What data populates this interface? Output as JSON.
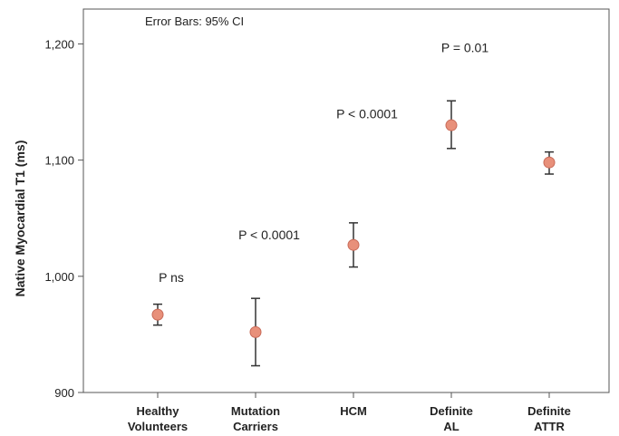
{
  "chart_data": {
    "type": "scatter",
    "note": "Error Bars: 95% CI",
    "ylabel": "Native Myocardial T1 (ms)",
    "xlabel": "",
    "ylim": [
      900,
      1230
    ],
    "yticks": [
      900,
      1000,
      1100,
      1200
    ],
    "ytick_labels": [
      "900",
      "1,000",
      "1,100",
      "1,200"
    ],
    "categories": [
      [
        "Healthy",
        "Volunteers"
      ],
      [
        "Mutation",
        "Carriers"
      ],
      [
        "HCM"
      ],
      [
        "Definite",
        "AL"
      ],
      [
        "Definite",
        "ATTR"
      ]
    ],
    "values": [
      967,
      952,
      1027,
      1130,
      1098
    ],
    "ci_lower": [
      958,
      923,
      1008,
      1110,
      1088
    ],
    "ci_upper": [
      976,
      981,
      1046,
      1151,
      1107
    ],
    "annotations": [
      {
        "text": "P ns",
        "x_index": 0,
        "y": 995
      },
      {
        "text": "P < 0.0001",
        "x_index": 1,
        "y": 1032
      },
      {
        "text": "P < 0.0001",
        "x_index": 2,
        "y": 1136
      },
      {
        "text": "P = 0.01",
        "x_index": 3,
        "y": 1193
      }
    ],
    "marker_color": "#e8907a",
    "marker_edge": "#c86a58",
    "errorbar_color": "#333333",
    "grid": false
  }
}
